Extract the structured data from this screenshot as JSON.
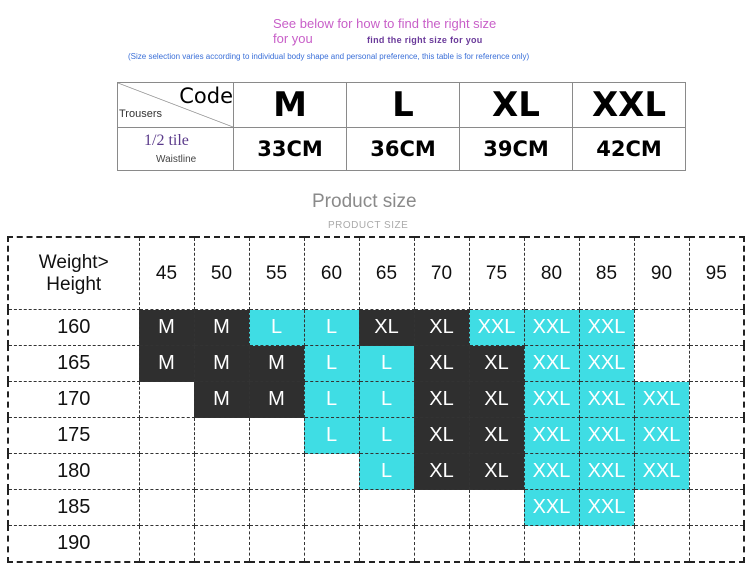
{
  "intro": {
    "line1": "See below for how to find the right size",
    "line2": "for you",
    "bold": "find the right size for you",
    "note": "(Size selection varies according to individual body shape and personal preference, this table is for reference only)"
  },
  "size_table": {
    "code_label": "Code",
    "trousers_label": "Trousers",
    "tile_label": "1/2 tile",
    "waistline_label": "Waistline",
    "sizes": [
      "M",
      "L",
      "XL",
      "XXL"
    ],
    "waist": [
      "33CM",
      "36CM",
      "39CM",
      "42CM"
    ]
  },
  "product": {
    "title": "Product size",
    "subtitle": "PRODUCT SIZE"
  },
  "grid": {
    "header_line1": "Weight>",
    "header_line2": "Height",
    "weights": [
      "45",
      "50",
      "55",
      "60",
      "65",
      "70",
      "75",
      "80",
      "85",
      "90",
      "95"
    ],
    "rows": [
      {
        "height": "160",
        "cells": [
          "M",
          "M",
          "L",
          "L",
          "XL",
          "XL",
          "XXL",
          "XXL",
          "XXL",
          "",
          ""
        ]
      },
      {
        "height": "165",
        "cells": [
          "M",
          "M",
          "M",
          "L",
          "L",
          "XL",
          "XL",
          "XXL",
          "XXL",
          "",
          ""
        ]
      },
      {
        "height": "170",
        "cells": [
          "",
          "M",
          "M",
          "L",
          "L",
          "XL",
          "XL",
          "XXL",
          "XXL",
          "XXL",
          ""
        ]
      },
      {
        "height": "175",
        "cells": [
          "",
          "",
          "",
          "L",
          "L",
          "XL",
          "XL",
          "XXL",
          "XXL",
          "XXL",
          ""
        ]
      },
      {
        "height": "180",
        "cells": [
          "",
          "",
          "",
          "",
          "L",
          "XL",
          "XL",
          "XXL",
          "XXL",
          "XXL",
          ""
        ]
      },
      {
        "height": "185",
        "cells": [
          "",
          "",
          "",
          "",
          "",
          "",
          "",
          "XXL",
          "XXL",
          "",
          ""
        ]
      },
      {
        "height": "190",
        "cells": [
          "",
          "",
          "",
          "",
          "",
          "",
          "",
          "",
          "",
          "",
          ""
        ]
      }
    ]
  },
  "colors": {
    "dark": "#2f2f2f",
    "cyan": "#3fdde4"
  }
}
